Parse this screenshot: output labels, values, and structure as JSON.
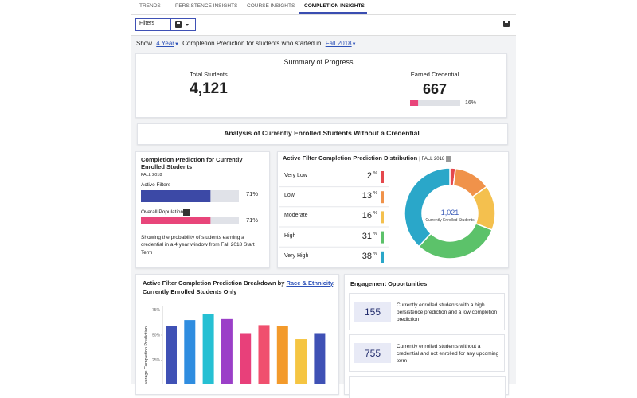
{
  "tabs": [
    "TRENDS",
    "PERSISTENCE INSIGHTS",
    "COURSE INSIGHTS",
    "COMPLETION INSIGHTS"
  ],
  "active_tab": 3,
  "toolbar": {
    "filters": "Filters"
  },
  "show_bar": {
    "show": "Show",
    "period": "4 Year",
    "text": "Completion Prediction for students who started in",
    "term": "Fall 2018"
  },
  "summary": {
    "title": "Summary of Progress",
    "total_label": "Total Students",
    "total_value": "4,121",
    "earned_label": "Earned Credential",
    "earned_value": "667",
    "earned_percent": {
      "value": 16,
      "label": "16%"
    },
    "xlim": [
      0,
      100
    ],
    "color": "#e8457a"
  },
  "analysis_title": "Analysis of Currently Enrolled Students Without a Credential",
  "prediction_card": {
    "title": "Completion Prediction for Currently Enrolled Students",
    "term": "FALL 2018",
    "xlim": [
      0,
      100
    ],
    "bars": [
      {
        "label": "Active Filters",
        "value": 71,
        "value_label": "71%",
        "color": "#3c49a6"
      },
      {
        "label": "Overall Population",
        "value": 71,
        "value_label": "71%",
        "color": "#e8457a"
      }
    ],
    "description": "Showing the probability of students earning a credential in a 4 year window from Fall 2018 Start Term"
  },
  "distribution": {
    "title": "Active Filter Completion Prediction Distribution",
    "term": "| FALL 2018",
    "rows": [
      {
        "label": "Very Low",
        "value": 2,
        "unit": "%",
        "color": "#e5484d"
      },
      {
        "label": "Low",
        "value": 13,
        "unit": "%",
        "color": "#f0924a"
      },
      {
        "label": "Moderate",
        "value": 16,
        "unit": "%",
        "color": "#f4c04e"
      },
      {
        "label": "High",
        "value": 31,
        "unit": "%",
        "color": "#5cc26a"
      },
      {
        "label": "Very High",
        "value": 38,
        "unit": "%",
        "color": "#2aa7c9"
      }
    ],
    "total": "1,021",
    "total_label": "Currently Enrolled Students"
  },
  "chart_data": {
    "type": "bar",
    "title": "Active Filter Completion Prediction Breakdown by",
    "title_link": "Race & Ethnicity",
    "title_suffix": ",",
    "subtitle": "Currently Enrolled Students Only",
    "y_label": "Average Completion Prediction",
    "categories": [
      null,
      null,
      null,
      null,
      null,
      null,
      null,
      null,
      null
    ],
    "values": [
      59,
      65,
      71,
      66,
      52,
      60,
      59,
      46,
      52
    ],
    "colors": [
      "#3f51b5",
      "#2f8de0",
      "#26c0d3",
      "#9b3fc8",
      "#e8407a",
      "#f0506e",
      "#f39a2b",
      "#f5c542",
      "#3f51b5"
    ],
    "ylim": [
      0,
      80
    ],
    "yticks": [
      {
        "value": 25,
        "label": "25%"
      },
      {
        "value": 50,
        "label": "50%"
      },
      {
        "value": 75,
        "label": "75%"
      }
    ],
    "grid": false
  },
  "engagement": {
    "title": "Engagement Opportunities",
    "items": [
      {
        "count": 155,
        "text": "Currently enrolled students with a high persistence prediction and a low completion prediction"
      },
      {
        "count": 755,
        "text": "Currently enrolled students without a credential and not enrolled for any upcoming term"
      }
    ]
  }
}
